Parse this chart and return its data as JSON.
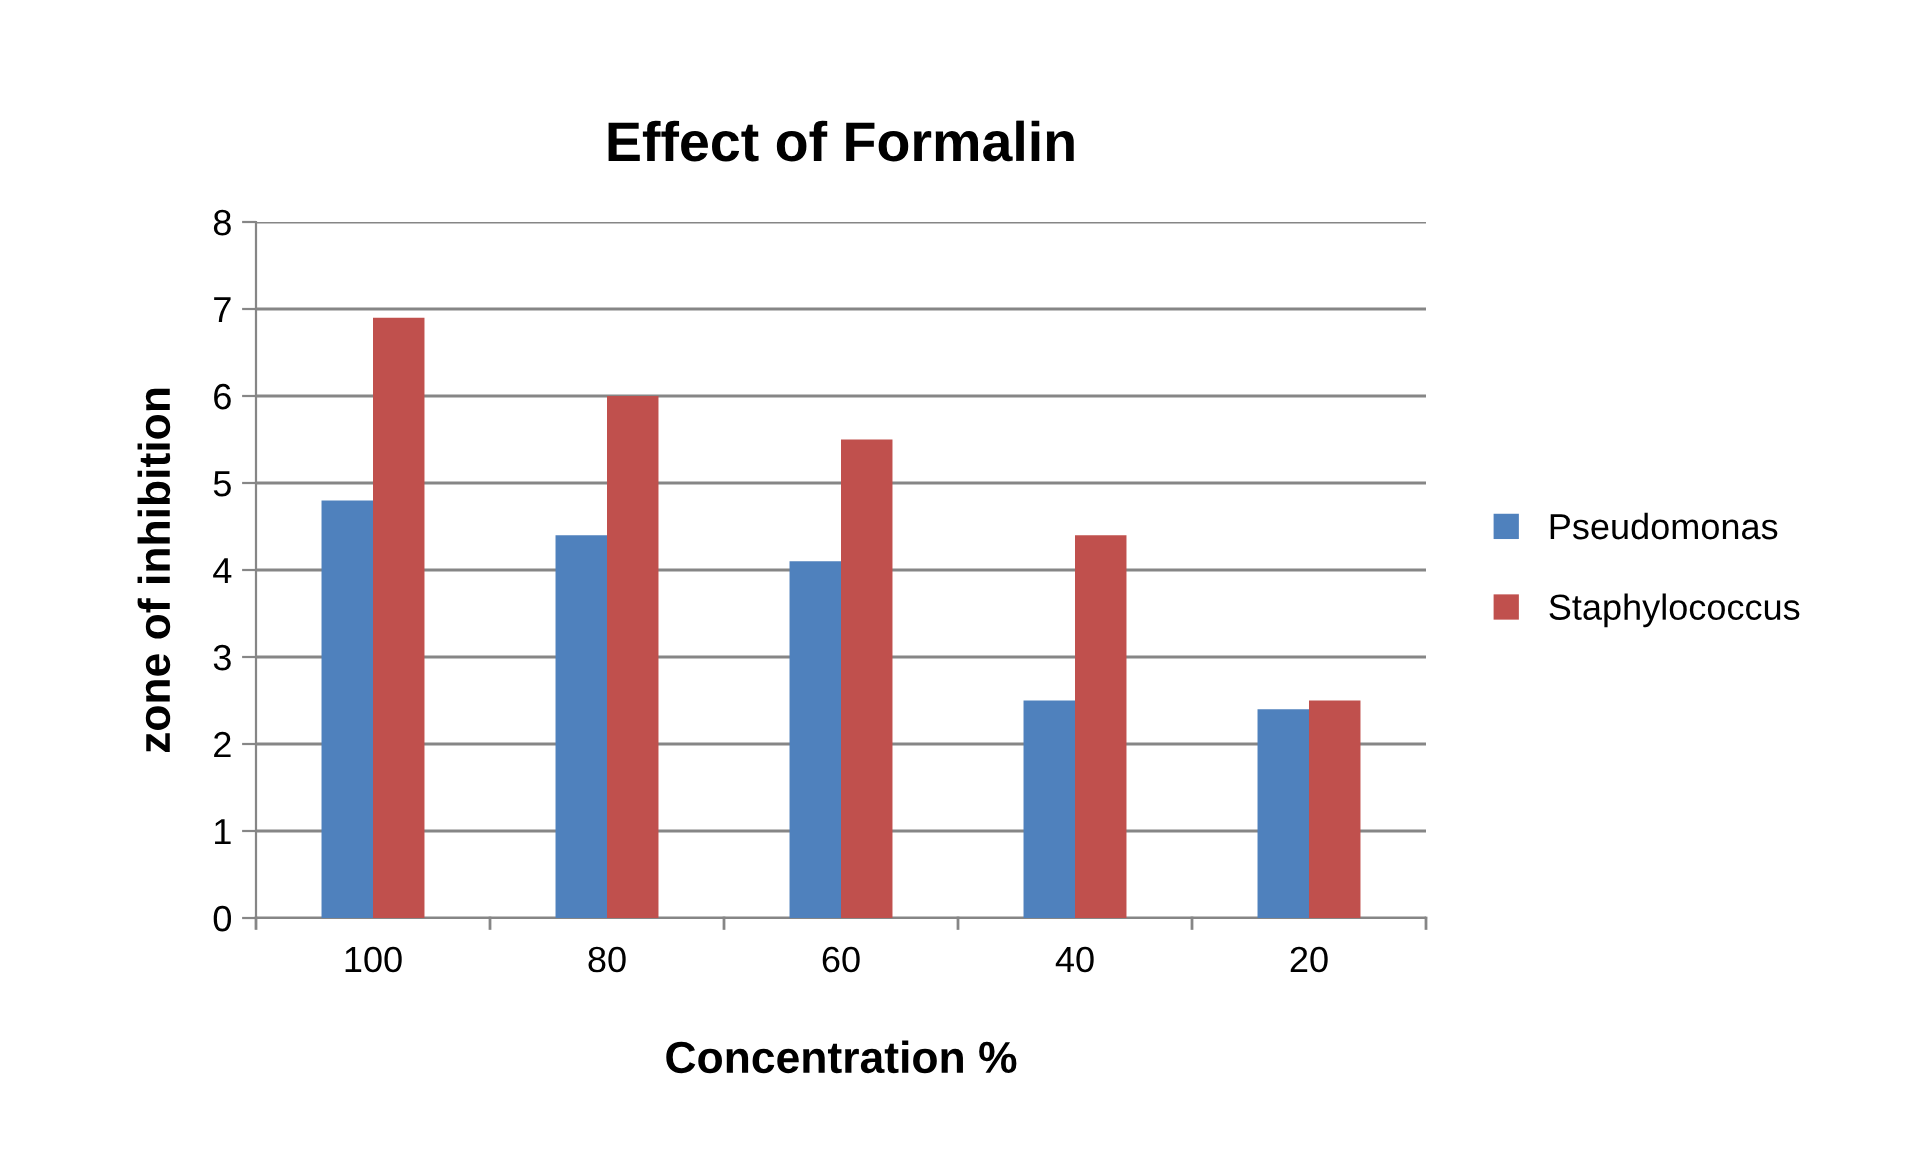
{
  "chart_data": {
    "type": "bar",
    "title": "Effect of Formalin",
    "xlabel": "Concentration %",
    "ylabel": "zone of inhibition",
    "categories": [
      "100",
      "80",
      "60",
      "40",
      "20"
    ],
    "series": [
      {
        "name": "Pseudomonas",
        "color": "#4f81bd",
        "values": [
          4.8,
          4.4,
          4.1,
          2.5,
          2.4
        ]
      },
      {
        "name": "Staphylococcus",
        "color": "#c0504d",
        "values": [
          6.9,
          6.0,
          5.5,
          4.4,
          2.5
        ]
      }
    ],
    "ylim": [
      0,
      8
    ],
    "yticks": [
      0,
      1,
      2,
      3,
      4,
      5,
      6,
      7,
      8
    ],
    "grid": "y",
    "legend": "right"
  }
}
